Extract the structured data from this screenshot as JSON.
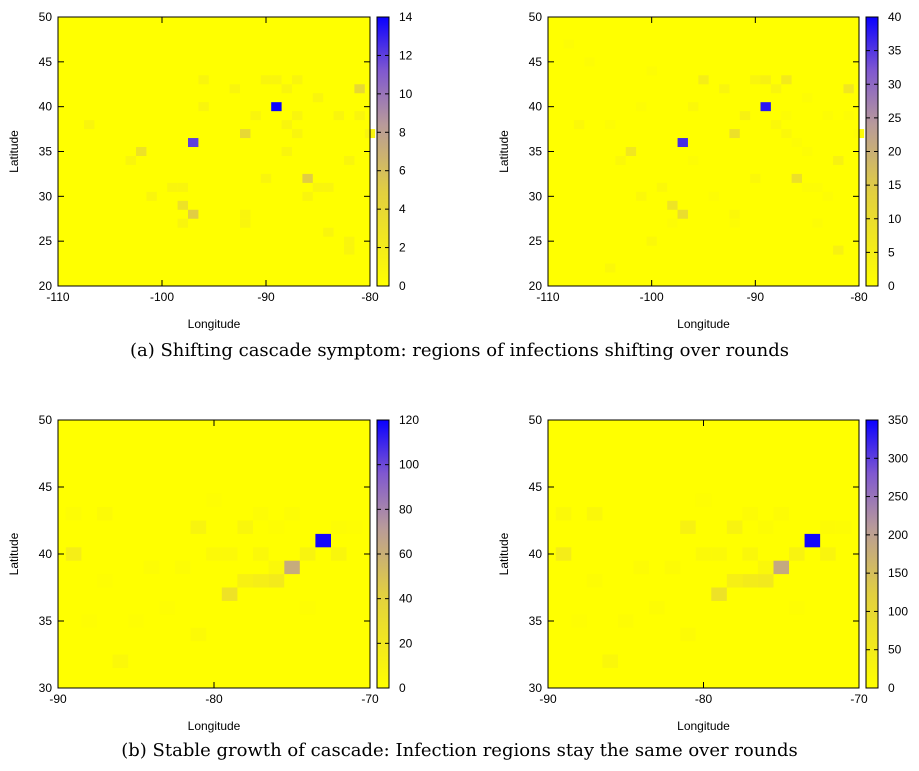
{
  "colors": {
    "low": "#ffff00",
    "mid": "#c09a8c",
    "high": "#0a00ff",
    "frame": "#000000"
  },
  "captions": {
    "a": "(a) Shifting cascade symptom: regions of infections shifting over rounds",
    "b": "(b) Stable growth of cascade: Infection regions stay the same over rounds"
  },
  "chart_data": [
    {
      "type": "heatmap",
      "xlabel": "Longitude",
      "ylabel": "Latitude",
      "xlim": [
        -110,
        -80
      ],
      "ylim": [
        20,
        50
      ],
      "xticks": [
        -110,
        -100,
        -90,
        -80
      ],
      "yticks": [
        20,
        25,
        30,
        35,
        40,
        45,
        50
      ],
      "cell": 1,
      "colorbar": {
        "min": 0,
        "max": 14,
        "ticks": [
          0,
          2,
          4,
          6,
          8,
          10,
          12,
          14
        ]
      },
      "cells": [
        [
          -89,
          40,
          14
        ],
        [
          -97,
          36,
          12
        ],
        [
          -97,
          28,
          5
        ],
        [
          -92,
          37,
          4
        ],
        [
          -86,
          32,
          5
        ],
        [
          -81,
          42,
          4
        ],
        [
          -98,
          29,
          3
        ],
        [
          -102,
          35,
          3
        ],
        [
          -107,
          38,
          1
        ],
        [
          -103,
          34,
          1
        ],
        [
          -101,
          30,
          1
        ],
        [
          -99,
          31,
          1
        ],
        [
          -98,
          31,
          1
        ],
        [
          -98,
          27,
          1
        ],
        [
          -96,
          40,
          1
        ],
        [
          -96,
          43,
          1
        ],
        [
          -93,
          42,
          1
        ],
        [
          -92,
          28,
          1
        ],
        [
          -92,
          27,
          1
        ],
        [
          -91,
          39,
          1
        ],
        [
          -90,
          43,
          1
        ],
        [
          -89,
          43,
          1
        ],
        [
          -88,
          42,
          1
        ],
        [
          -87,
          43,
          1
        ],
        [
          -90,
          32,
          1
        ],
        [
          -88,
          38,
          1
        ],
        [
          -87,
          37,
          1
        ],
        [
          -87,
          39,
          1
        ],
        [
          -88,
          35,
          1
        ],
        [
          -86,
          30,
          1
        ],
        [
          -85,
          31,
          1
        ],
        [
          -85,
          41,
          1
        ],
        [
          -84,
          31,
          1
        ],
        [
          -84,
          26,
          1
        ],
        [
          -83,
          39,
          1
        ],
        [
          -81,
          39,
          1
        ],
        [
          -82,
          34,
          1
        ],
        [
          -82,
          25,
          1
        ],
        [
          -82,
          24,
          1
        ],
        [
          -80,
          37,
          1
        ]
      ]
    },
    {
      "type": "heatmap",
      "xlabel": "Longitude",
      "ylabel": "Latitude",
      "xlim": [
        -110,
        -80
      ],
      "ylim": [
        20,
        50
      ],
      "xticks": [
        -110,
        -100,
        -90,
        -80
      ],
      "yticks": [
        20,
        25,
        30,
        35,
        40,
        45,
        50
      ],
      "cell": 1,
      "colorbar": {
        "min": 0,
        "max": 40,
        "ticks": [
          0,
          5,
          10,
          15,
          20,
          25,
          30,
          35,
          40
        ]
      },
      "cells": [
        [
          -89,
          40,
          38
        ],
        [
          -97,
          36,
          36
        ],
        [
          -97,
          28,
          10
        ],
        [
          -92,
          37,
          9
        ],
        [
          -86,
          32,
          9
        ],
        [
          -81,
          42,
          7
        ],
        [
          -98,
          29,
          8
        ],
        [
          -102,
          35,
          7
        ],
        [
          -95,
          43,
          5
        ],
        [
          -89,
          43,
          4
        ],
        [
          -87,
          43,
          6
        ],
        [
          -82,
          34,
          4
        ],
        [
          -82,
          24,
          4
        ],
        [
          -91,
          39,
          4
        ],
        [
          -93,
          42,
          3
        ],
        [
          -90,
          43,
          3
        ],
        [
          -88,
          42,
          3
        ],
        [
          -108,
          47,
          1
        ],
        [
          -107,
          38,
          2
        ],
        [
          -104,
          38,
          1
        ],
        [
          -103,
          34,
          2
        ],
        [
          -101,
          30,
          2
        ],
        [
          -99,
          31,
          2
        ],
        [
          -98,
          27,
          1
        ],
        [
          -96,
          40,
          2
        ],
        [
          -96,
          34,
          1
        ],
        [
          -94,
          30,
          1
        ],
        [
          -92,
          28,
          2
        ],
        [
          -92,
          27,
          1
        ],
        [
          -90,
          32,
          2
        ],
        [
          -88,
          38,
          2
        ],
        [
          -87,
          37,
          2
        ],
        [
          -87,
          39,
          1
        ],
        [
          -86,
          36,
          1
        ],
        [
          -85,
          35,
          1
        ],
        [
          -85,
          31,
          1
        ],
        [
          -85,
          41,
          1
        ],
        [
          -84,
          31,
          1
        ],
        [
          -84,
          27,
          1
        ],
        [
          -83,
          39,
          1
        ],
        [
          -83,
          30,
          1
        ],
        [
          -81,
          39,
          1
        ],
        [
          -80,
          37,
          1
        ],
        [
          -104,
          22,
          2
        ],
        [
          -100,
          25,
          2
        ],
        [
          -106,
          45,
          1
        ],
        [
          -100,
          44,
          1
        ],
        [
          -101,
          40,
          1
        ]
      ]
    },
    {
      "type": "heatmap",
      "xlabel": "Longitude",
      "ylabel": "Latitude",
      "xlim": [
        -90,
        -70
      ],
      "ylim": [
        30,
        50
      ],
      "xticks": [
        -90,
        -80,
        -70
      ],
      "yticks": [
        30,
        35,
        40,
        45,
        50
      ],
      "cell": 1,
      "colorbar": {
        "min": 0,
        "max": 120,
        "ticks": [
          0,
          20,
          40,
          60,
          80,
          100,
          120
        ]
      },
      "cells": [
        [
          -73,
          41,
          118
        ],
        [
          -75,
          39,
          62
        ],
        [
          -79,
          37,
          25
        ],
        [
          -76,
          38,
          18
        ],
        [
          -77,
          38,
          15
        ],
        [
          -78,
          38,
          12
        ],
        [
          -89,
          40,
          15
        ],
        [
          -81,
          42,
          10
        ],
        [
          -78,
          42,
          8
        ],
        [
          -74,
          40,
          10
        ],
        [
          -72,
          40,
          8
        ],
        [
          -77,
          40,
          6
        ],
        [
          -80,
          40,
          5
        ],
        [
          -79,
          40,
          5
        ],
        [
          -76,
          39,
          6
        ],
        [
          -87,
          43,
          4
        ],
        [
          -89,
          43,
          3
        ],
        [
          -86,
          32,
          6
        ],
        [
          -81,
          34,
          4
        ],
        [
          -84,
          39,
          3
        ],
        [
          -82,
          39,
          3
        ],
        [
          -83,
          36,
          2
        ],
        [
          -85,
          35,
          2
        ],
        [
          -88,
          35,
          2
        ],
        [
          -87,
          38,
          2
        ],
        [
          -77,
          43,
          3
        ],
        [
          -75,
          43,
          3
        ],
        [
          -72,
          42,
          3
        ],
        [
          -71,
          42,
          2
        ],
        [
          -74,
          36,
          2
        ],
        [
          -76,
          42,
          2
        ],
        [
          -80,
          44,
          2
        ]
      ]
    },
    {
      "type": "heatmap",
      "xlabel": "Longitude",
      "ylabel": "Latitude",
      "xlim": [
        -90,
        -70
      ],
      "ylim": [
        30,
        50
      ],
      "xticks": [
        -90,
        -80,
        -70
      ],
      "yticks": [
        30,
        35,
        40,
        45,
        50
      ],
      "cell": 1,
      "colorbar": {
        "min": 0,
        "max": 350,
        "ticks": [
          0,
          50,
          100,
          150,
          200,
          250,
          300,
          350
        ]
      },
      "cells": [
        [
          -73,
          41,
          345
        ],
        [
          -75,
          39,
          185
        ],
        [
          -79,
          37,
          75
        ],
        [
          -76,
          38,
          55
        ],
        [
          -77,
          38,
          50
        ],
        [
          -78,
          38,
          40
        ],
        [
          -89,
          40,
          45
        ],
        [
          -81,
          42,
          35
        ],
        [
          -78,
          42,
          30
        ],
        [
          -74,
          40,
          30
        ],
        [
          -72,
          40,
          25
        ],
        [
          -77,
          40,
          20
        ],
        [
          -80,
          40,
          15
        ],
        [
          -79,
          40,
          15
        ],
        [
          -76,
          39,
          20
        ],
        [
          -87,
          43,
          20
        ],
        [
          -89,
          43,
          15
        ],
        [
          -86,
          32,
          20
        ],
        [
          -81,
          34,
          10
        ],
        [
          -84,
          39,
          10
        ],
        [
          -82,
          39,
          10
        ],
        [
          -83,
          36,
          8
        ],
        [
          -85,
          35,
          8
        ],
        [
          -88,
          35,
          6
        ],
        [
          -87,
          38,
          8
        ],
        [
          -77,
          43,
          10
        ],
        [
          -75,
          43,
          10
        ],
        [
          -72,
          42,
          10
        ],
        [
          -71,
          42,
          8
        ],
        [
          -74,
          36,
          6
        ],
        [
          -76,
          42,
          8
        ],
        [
          -80,
          44,
          6
        ]
      ]
    }
  ]
}
